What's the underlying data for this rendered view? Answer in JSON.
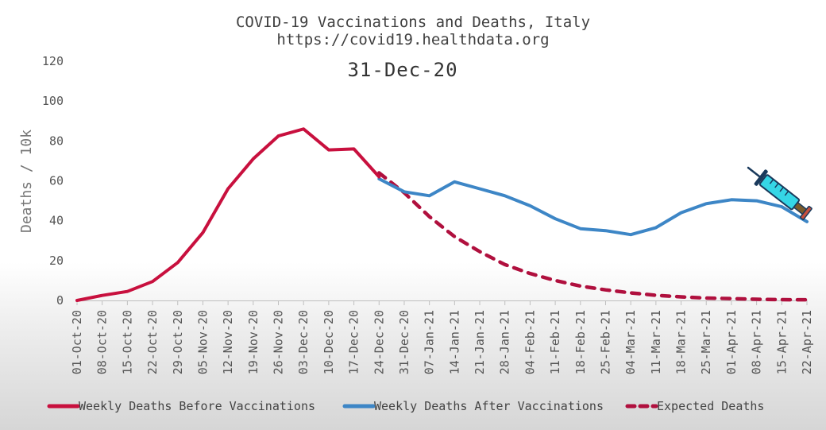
{
  "chart_data": {
    "type": "line",
    "title_line1": "COVID-19 Vaccinations and Deaths, Italy",
    "title_line2": "https://covid19.healthdata.org",
    "date_label": "31-Dec-20",
    "ylabel": "Deaths / 10k",
    "ylim": [
      0,
      120
    ],
    "yticks": [
      0,
      20,
      40,
      60,
      80,
      100,
      120
    ],
    "grid": false,
    "legend_position": "bottom",
    "categories": [
      "01-Oct-20",
      "08-Oct-20",
      "15-Oct-20",
      "22-Oct-20",
      "29-Oct-20",
      "05-Nov-20",
      "12-Nov-20",
      "19-Nov-20",
      "26-Nov-20",
      "03-Dec-20",
      "10-Dec-20",
      "17-Dec-20",
      "24-Dec-20",
      "31-Dec-20",
      "07-Jan-21",
      "14-Jan-21",
      "21-Jan-21",
      "28-Jan-21",
      "04-Feb-21",
      "11-Feb-21",
      "18-Feb-21",
      "25-Feb-21",
      "04-Mar-21",
      "11-Mar-21",
      "18-Mar-21",
      "25-Mar-21",
      "01-Apr-21",
      "08-Apr-21",
      "15-Apr-21",
      "22-Apr-21"
    ],
    "series": [
      {
        "name": "Weekly Deaths Before Vaccinations",
        "color": "#c8103e",
        "dashed": false,
        "values": [
          0,
          2.5,
          4.5,
          9.5,
          19,
          34,
          56,
          71,
          82.5,
          86,
          75.5,
          76,
          62,
          null,
          null,
          null,
          null,
          null,
          null,
          null,
          null,
          null,
          null,
          null,
          null,
          null,
          null,
          null,
          null,
          null
        ]
      },
      {
        "name": "Weekly Deaths After Vaccinations",
        "color": "#3d86c6",
        "dashed": false,
        "values": [
          null,
          null,
          null,
          null,
          null,
          null,
          null,
          null,
          null,
          null,
          null,
          null,
          61,
          54.5,
          52.5,
          59.5,
          56,
          52.5,
          47.5,
          41,
          36,
          35,
          33,
          36.5,
          44,
          48.5,
          50.5,
          50,
          47,
          39.5
        ]
      },
      {
        "name": "Expected Deaths",
        "color": "#b0103e",
        "dashed": true,
        "values": [
          null,
          null,
          null,
          null,
          null,
          null,
          null,
          null,
          null,
          null,
          null,
          null,
          64,
          54,
          42,
          32,
          24.5,
          18,
          13.5,
          10,
          7.2,
          5.3,
          3.8,
          2.6,
          1.8,
          1.2,
          0.9,
          0.6,
          0.4,
          0.3
        ]
      }
    ]
  },
  "icon": "syringe-icon",
  "icon_colors": {
    "barrel": "#35d6e6",
    "outline": "#1a3a5c",
    "plunger": "#7a5a2a",
    "tip": "#c8503e"
  }
}
